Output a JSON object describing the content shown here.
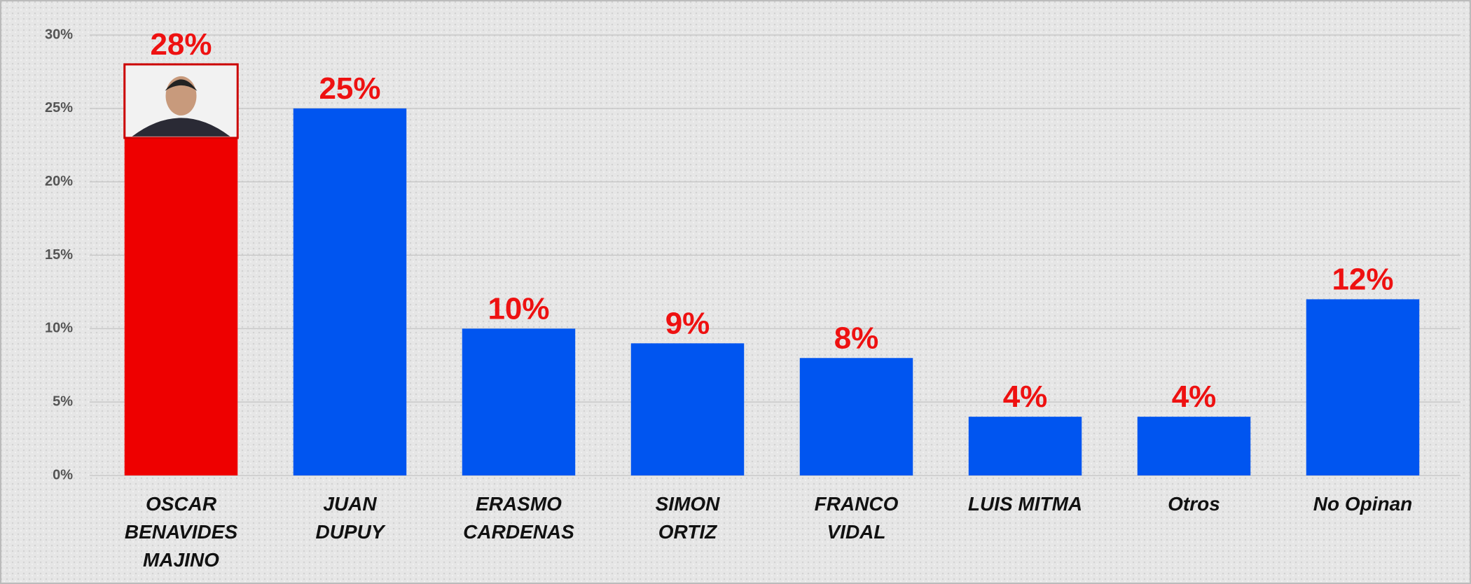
{
  "chart_data": {
    "type": "bar",
    "categories": [
      "OSCAR\nBENAVIDES\nMAJINO",
      "JUAN\nDUPUY",
      "ERASMO\nCARDENAS",
      "SIMON\nORTIZ",
      "FRANCO\nVIDAL",
      "LUIS MITMA",
      "Otros",
      "No Opinan"
    ],
    "values": [
      28,
      25,
      10,
      9,
      8,
      4,
      4,
      12
    ],
    "value_labels": [
      "28%",
      "25%",
      "10%",
      "9%",
      "8%",
      "4%",
      "4%",
      "12%"
    ],
    "colors": [
      "#ee0000",
      "#0055f0",
      "#0055f0",
      "#0055f0",
      "#0055f0",
      "#0055f0",
      "#0055f0",
      "#0055f0"
    ],
    "ylim": [
      0,
      30
    ],
    "yticks": [
      {
        "value": 0,
        "label": "0%"
      },
      {
        "value": 5,
        "label": "5%"
      },
      {
        "value": 10,
        "label": "10%"
      },
      {
        "value": 15,
        "label": "15%"
      },
      {
        "value": 20,
        "label": "20%"
      },
      {
        "value": 25,
        "label": "25%"
      },
      {
        "value": 30,
        "label": "30%"
      }
    ],
    "grid": true
  }
}
